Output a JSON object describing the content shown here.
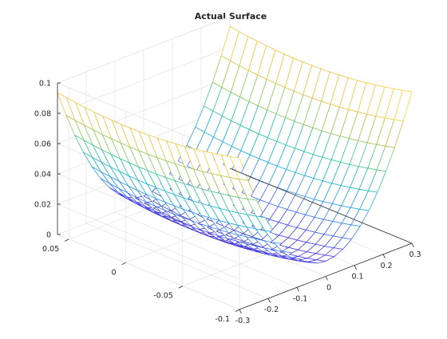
{
  "chart_data": {
    "type": "surface",
    "title": "Actual Surface",
    "xlabel": "",
    "ylabel": "",
    "zlabel": "",
    "xlim": [
      -0.3,
      0.3
    ],
    "ylim": [
      -0.1,
      0.06
    ],
    "zlim": [
      0,
      0.1
    ],
    "x_ticks": [
      -0.3,
      -0.2,
      -0.1,
      0,
      0.1,
      0.2,
      0.3
    ],
    "x_tick_labels": [
      "-0.3",
      "-0.2",
      "-0.1",
      "0",
      "0.1",
      "0.2",
      "0.3"
    ],
    "y_ticks": [
      -0.1,
      -0.05,
      0,
      0.05
    ],
    "y_tick_labels": [
      "-0.1",
      "-0.05",
      "0",
      "0.05"
    ],
    "z_ticks": [
      0,
      0.02,
      0.04,
      0.06,
      0.08,
      0.1
    ],
    "z_tick_labels": [
      "0",
      "0.02",
      "0.04",
      "0.06",
      "0.08",
      "0.1"
    ],
    "grid": true,
    "colormap": [
      "#3e26a8",
      "#4743f8",
      "#2d89ef",
      "#13aee0",
      "#17c2a3",
      "#73cb64",
      "#cab936",
      "#fcc635",
      "#f9fb15"
    ],
    "surface": {
      "function": "z = x^2 + y^2",
      "x_range": [
        -0.3,
        0.3
      ],
      "y_range": [
        -0.1,
        0.06
      ],
      "x_samples": 21,
      "y_samples": 21
    }
  }
}
